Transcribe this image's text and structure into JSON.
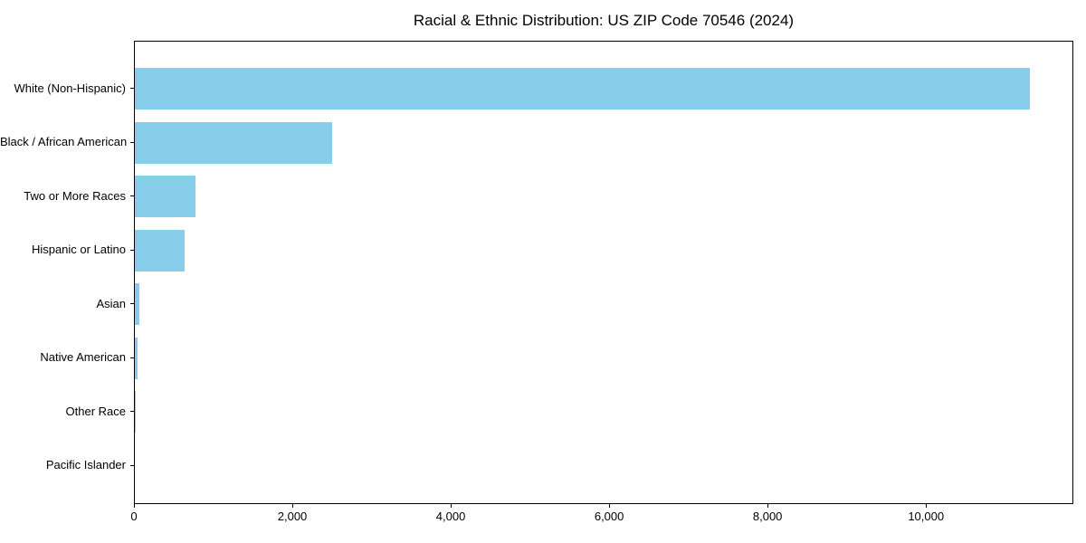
{
  "chart_data": {
    "type": "bar",
    "orientation": "horizontal",
    "title": "Racial & Ethnic Distribution: US ZIP Code 70546 (2024)",
    "categories": [
      "White (Non-Hispanic)",
      "Black / African American",
      "Two or More Races",
      "Hispanic or Latino",
      "Asian",
      "Native American",
      "Other Race",
      "Pacific Islander"
    ],
    "values": [
      11300,
      2490,
      765,
      625,
      60,
      35,
      10,
      0
    ],
    "xlabel": "",
    "ylabel": "",
    "xlim": [
      0,
      11860
    ],
    "x_ticks": [
      0,
      2000,
      4000,
      6000,
      8000,
      10000
    ],
    "x_tick_labels": [
      "0",
      "2,000",
      "4,000",
      "6,000",
      "8,000",
      "10,000"
    ],
    "bar_color": "#87CEEB",
    "axis_color": "#000000",
    "background_color": "#FFFFFF",
    "grid": false,
    "legend": null
  }
}
